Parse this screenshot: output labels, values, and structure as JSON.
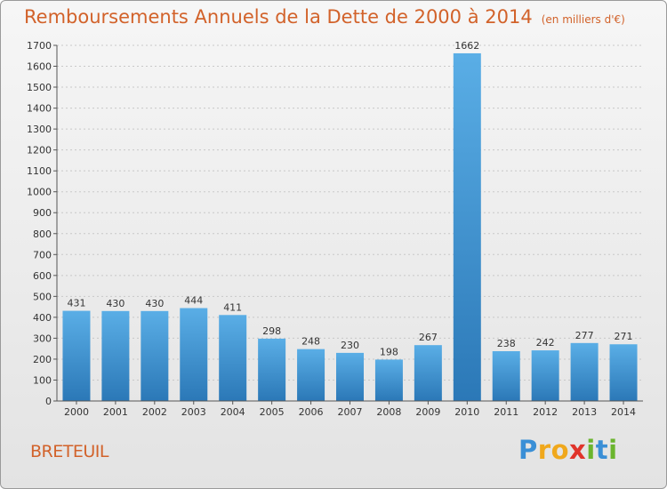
{
  "chart_data": {
    "type": "bar",
    "title": "Remboursements Annuels de la Dette de 2000 à 2014",
    "unit": "(en milliers d'€)",
    "categories": [
      "2000",
      "2001",
      "2002",
      "2003",
      "2004",
      "2005",
      "2006",
      "2007",
      "2008",
      "2009",
      "2010",
      "2011",
      "2012",
      "2013",
      "2014"
    ],
    "values": [
      431,
      430,
      430,
      444,
      411,
      298,
      248,
      230,
      198,
      267,
      1662,
      238,
      242,
      277,
      271
    ],
    "ylim": [
      0,
      1700
    ],
    "yticks": [
      0,
      100,
      200,
      300,
      400,
      500,
      600,
      700,
      800,
      900,
      1000,
      1100,
      1200,
      1300,
      1400,
      1500,
      1600,
      1700
    ],
    "grid": true,
    "colors": {
      "bar_light": "#5aaee6",
      "bar_dark": "#2b78b7",
      "title": "#d2622a"
    }
  },
  "town": "BRETEUIL",
  "logo": {
    "letters": [
      "P",
      "r",
      "o",
      "x",
      "i",
      "t",
      "i"
    ],
    "colors": [
      "#3a8fd6",
      "#f0a81c",
      "#f0a81c",
      "#e0342b",
      "#6bb52e",
      "#3a8fd6",
      "#6bb52e"
    ]
  }
}
